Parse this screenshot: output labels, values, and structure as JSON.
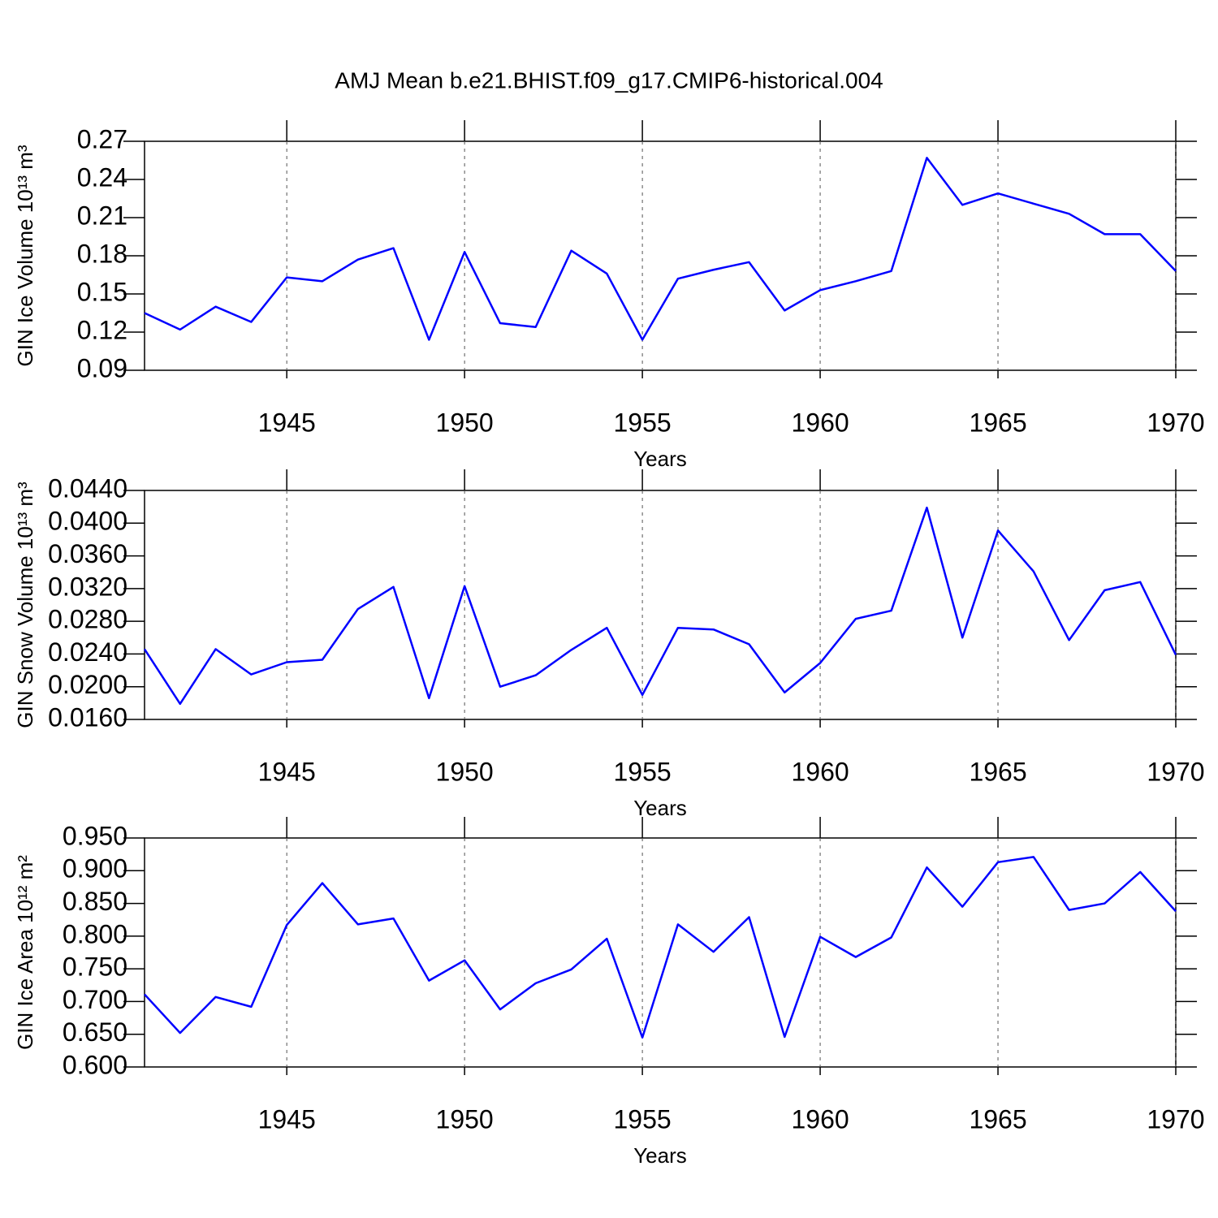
{
  "chart_data": [
    {
      "type": "line",
      "title": "AMJ Mean b.e21.BHIST.f09_g17.CMIP6-historical.004",
      "y_label": "GIN Ice Volume 10¹³ m³",
      "x_label": "Years",
      "x": [
        1941,
        1942,
        1943,
        1944,
        1945,
        1946,
        1947,
        1948,
        1949,
        1950,
        1951,
        1952,
        1953,
        1954,
        1955,
        1956,
        1957,
        1958,
        1959,
        1960,
        1961,
        1962,
        1963,
        1964,
        1965,
        1966,
        1967,
        1968,
        1969,
        1970
      ],
      "series": [
        {
          "color": "#0000ff",
          "values": [
            0.135,
            0.122,
            0.14,
            0.128,
            0.163,
            0.16,
            0.177,
            0.186,
            0.114,
            0.183,
            0.127,
            0.124,
            0.184,
            0.166,
            0.114,
            0.162,
            0.169,
            0.175,
            0.137,
            0.153,
            0.16,
            0.168,
            0.257,
            0.22,
            0.229,
            0.221,
            0.213,
            0.197,
            0.197,
            0.168
          ]
        }
      ],
      "xlim": [
        1941,
        1970
      ],
      "xticks": [
        1945,
        1950,
        1955,
        1960,
        1965,
        1970
      ],
      "ylim": [
        0.09,
        0.27
      ],
      "yticks": [
        0.09,
        0.12,
        0.15,
        0.18,
        0.21,
        0.24,
        0.27
      ],
      "grid": true
    },
    {
      "type": "line",
      "y_label": "GIN Snow Volume 10¹³ m³",
      "x_label": "Years",
      "x": [
        1941,
        1942,
        1943,
        1944,
        1945,
        1946,
        1947,
        1948,
        1949,
        1950,
        1951,
        1952,
        1953,
        1954,
        1955,
        1956,
        1957,
        1958,
        1959,
        1960,
        1961,
        1962,
        1963,
        1964,
        1965,
        1966,
        1967,
        1968,
        1969,
        1970
      ],
      "series": [
        {
          "color": "#0000ff",
          "values": [
            0.0246,
            0.0179,
            0.0246,
            0.0215,
            0.023,
            0.0233,
            0.0295,
            0.0322,
            0.0186,
            0.0323,
            0.02,
            0.0214,
            0.0245,
            0.0272,
            0.019,
            0.0272,
            0.027,
            0.0252,
            0.0193,
            0.0229,
            0.0283,
            0.0293,
            0.0419,
            0.026,
            0.0391,
            0.0341,
            0.0257,
            0.0318,
            0.0328,
            0.0239
          ]
        }
      ],
      "xlim": [
        1941,
        1970
      ],
      "xticks": [
        1945,
        1950,
        1955,
        1960,
        1965,
        1970
      ],
      "ylim": [
        0.016,
        0.044
      ],
      "yticks": [
        {
          "value": 0.016,
          "label": "0.0160"
        },
        {
          "value": 0.02,
          "label": "0.0200"
        },
        {
          "value": 0.024,
          "label": "0.0240"
        },
        {
          "value": 0.028,
          "label": "0.0280"
        },
        {
          "value": 0.032,
          "label": "0.0320"
        },
        {
          "value": 0.036,
          "label": "0.0360"
        },
        {
          "value": 0.04,
          "label": "0.0400"
        },
        {
          "value": 0.044,
          "label": "0.0440"
        }
      ],
      "grid": true
    },
    {
      "type": "line",
      "y_label": "GIN Ice Area 10¹² m²",
      "x_label": "Years",
      "x": [
        1941,
        1942,
        1943,
        1944,
        1945,
        1946,
        1947,
        1948,
        1949,
        1950,
        1951,
        1952,
        1953,
        1954,
        1955,
        1956,
        1957,
        1958,
        1959,
        1960,
        1961,
        1962,
        1963,
        1964,
        1965,
        1966,
        1967,
        1968,
        1969,
        1970
      ],
      "series": [
        {
          "color": "#0000ff",
          "values": [
            0.711,
            0.652,
            0.707,
            0.692,
            0.817,
            0.881,
            0.818,
            0.827,
            0.732,
            0.763,
            0.688,
            0.728,
            0.749,
            0.796,
            0.645,
            0.818,
            0.776,
            0.829,
            0.646,
            0.799,
            0.768,
            0.798,
            0.905,
            0.845,
            0.913,
            0.921,
            0.84,
            0.85,
            0.898,
            0.838
          ]
        }
      ],
      "xlim": [
        1941,
        1970
      ],
      "xticks": [
        1945,
        1950,
        1955,
        1960,
        1965,
        1970
      ],
      "ylim": [
        0.6,
        0.95
      ],
      "yticks": [
        {
          "value": 0.6,
          "label": "0.600"
        },
        {
          "value": 0.65,
          "label": "0.650"
        },
        {
          "value": 0.7,
          "label": "0.700"
        },
        {
          "value": 0.75,
          "label": "0.750"
        },
        {
          "value": 0.8,
          "label": "0.800"
        },
        {
          "value": 0.85,
          "label": "0.850"
        },
        {
          "value": 0.9,
          "label": "0.900"
        },
        {
          "value": 0.95,
          "label": "0.950"
        }
      ],
      "grid": true
    }
  ]
}
